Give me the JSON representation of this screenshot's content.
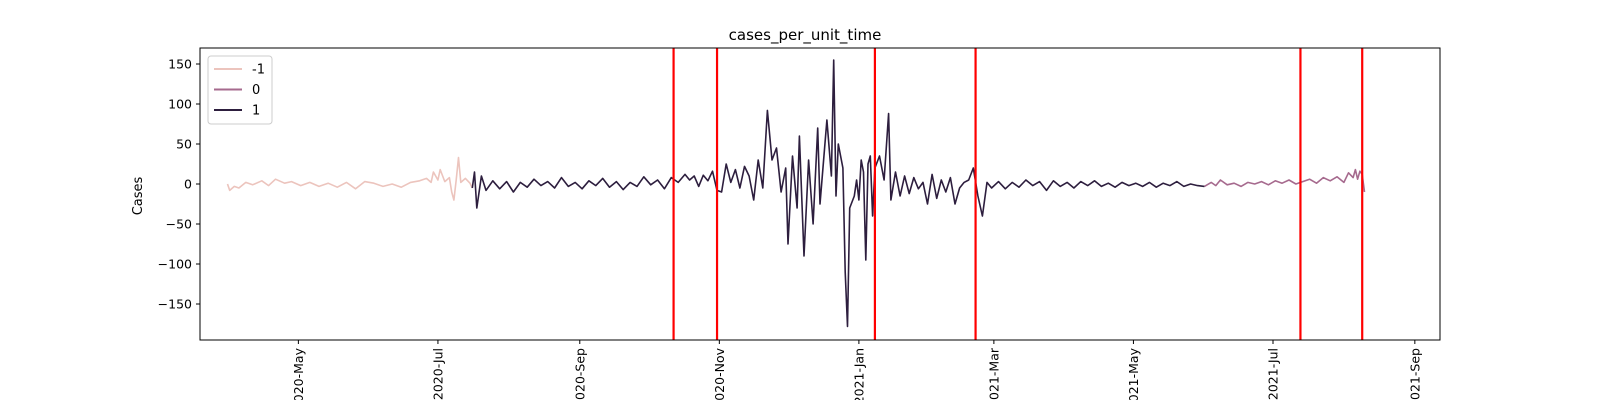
{
  "chart_data": {
    "type": "line",
    "title": "cases_per_unit_time",
    "xlabel": "",
    "ylabel": "Cases",
    "ylim": [
      -195,
      170
    ],
    "xlim": [
      "2020-03-19",
      "2021-09-12"
    ],
    "grid": false,
    "legend_position": "top-left",
    "y_ticks": [
      -150,
      -100,
      -50,
      0,
      50,
      100,
      150
    ],
    "y_tick_labels": [
      "−150",
      "−100",
      "−50",
      "0",
      "50",
      "100",
      "150"
    ],
    "x_ticks": [
      "2020-05-01",
      "2020-07-01",
      "2020-09-01",
      "2020-11-01",
      "2021-01-01",
      "2021-03-01",
      "2021-05-01",
      "2021-07-01",
      "2021-09-01"
    ],
    "x_tick_labels": [
      "2020-May",
      "2020-Jul",
      "2020-Sep",
      "2020-Nov",
      "2021-Jan",
      "2021-Mar",
      "2021-May",
      "2021-Jul",
      "2021-Sep"
    ],
    "vertical_lines": [
      "2020-10-12",
      "2020-10-31",
      "2021-01-08",
      "2021-02-21",
      "2021-07-13",
      "2021-08-09"
    ],
    "vertical_line_color": "#ff0000",
    "series": [
      {
        "name": "-1",
        "color": "#ecc4bd",
        "points": [
          [
            "2020-03-31",
            0
          ],
          [
            "2020-04-01",
            -8
          ],
          [
            "2020-04-03",
            -3
          ],
          [
            "2020-04-05",
            -5
          ],
          [
            "2020-04-08",
            2
          ],
          [
            "2020-04-11",
            -1
          ],
          [
            "2020-04-15",
            4
          ],
          [
            "2020-04-18",
            -2
          ],
          [
            "2020-04-21",
            6
          ],
          [
            "2020-04-25",
            1
          ],
          [
            "2020-04-28",
            3
          ],
          [
            "2020-05-02",
            -2
          ],
          [
            "2020-05-06",
            2
          ],
          [
            "2020-05-10",
            -3
          ],
          [
            "2020-05-14",
            1
          ],
          [
            "2020-05-18",
            -4
          ],
          [
            "2020-05-22",
            2
          ],
          [
            "2020-05-26",
            -6
          ],
          [
            "2020-05-30",
            3
          ],
          [
            "2020-06-03",
            1
          ],
          [
            "2020-06-07",
            -3
          ],
          [
            "2020-06-11",
            0
          ],
          [
            "2020-06-15",
            -4
          ],
          [
            "2020-06-19",
            2
          ],
          [
            "2020-06-23",
            4
          ],
          [
            "2020-06-26",
            7
          ],
          [
            "2020-06-28",
            2
          ],
          [
            "2020-06-29",
            15
          ],
          [
            "2020-07-01",
            5
          ],
          [
            "2020-07-02",
            18
          ],
          [
            "2020-07-04",
            3
          ],
          [
            "2020-07-06",
            8
          ],
          [
            "2020-07-07",
            -10
          ],
          [
            "2020-07-08",
            -20
          ],
          [
            "2020-07-09",
            5
          ],
          [
            "2020-07-10",
            33
          ],
          [
            "2020-07-11",
            2
          ],
          [
            "2020-07-13",
            7
          ],
          [
            "2020-07-15",
            1
          ],
          [
            "2020-07-16",
            -5
          ]
        ]
      },
      {
        "name": "0",
        "color": "#a66a8e",
        "points": [
          [
            "2021-06-01",
            -3
          ],
          [
            "2021-06-04",
            2
          ],
          [
            "2021-06-06",
            -2
          ],
          [
            "2021-06-08",
            5
          ],
          [
            "2021-06-11",
            -1
          ],
          [
            "2021-06-14",
            1
          ],
          [
            "2021-06-17",
            -3
          ],
          [
            "2021-06-20",
            2
          ],
          [
            "2021-06-23",
            0
          ],
          [
            "2021-06-26",
            3
          ],
          [
            "2021-06-29",
            -1
          ],
          [
            "2021-07-02",
            4
          ],
          [
            "2021-07-05",
            1
          ],
          [
            "2021-07-08",
            5
          ],
          [
            "2021-07-11",
            0
          ],
          [
            "2021-07-14",
            3
          ],
          [
            "2021-07-17",
            6
          ],
          [
            "2021-07-20",
            1
          ],
          [
            "2021-07-23",
            8
          ],
          [
            "2021-07-26",
            4
          ],
          [
            "2021-07-29",
            9
          ],
          [
            "2021-08-01",
            2
          ],
          [
            "2021-08-03",
            14
          ],
          [
            "2021-08-05",
            8
          ],
          [
            "2021-08-06",
            18
          ],
          [
            "2021-08-07",
            6
          ],
          [
            "2021-08-08",
            16
          ],
          [
            "2021-08-09",
            12
          ],
          [
            "2021-08-10",
            -10
          ]
        ]
      },
      {
        "name": "1",
        "color": "#2d1e3e",
        "points": [
          [
            "2020-07-16",
            -5
          ],
          [
            "2020-07-17",
            15
          ],
          [
            "2020-07-18",
            -30
          ],
          [
            "2020-07-20",
            10
          ],
          [
            "2020-07-22",
            -8
          ],
          [
            "2020-07-25",
            4
          ],
          [
            "2020-07-28",
            -6
          ],
          [
            "2020-07-31",
            3
          ],
          [
            "2020-08-03",
            -10
          ],
          [
            "2020-08-06",
            2
          ],
          [
            "2020-08-09",
            -4
          ],
          [
            "2020-08-12",
            6
          ],
          [
            "2020-08-15",
            -2
          ],
          [
            "2020-08-18",
            3
          ],
          [
            "2020-08-21",
            -5
          ],
          [
            "2020-08-24",
            8
          ],
          [
            "2020-08-27",
            -3
          ],
          [
            "2020-08-30",
            2
          ],
          [
            "2020-09-02",
            -6
          ],
          [
            "2020-09-05",
            4
          ],
          [
            "2020-09-08",
            -2
          ],
          [
            "2020-09-11",
            7
          ],
          [
            "2020-09-14",
            -4
          ],
          [
            "2020-09-17",
            3
          ],
          [
            "2020-09-20",
            -7
          ],
          [
            "2020-09-23",
            2
          ],
          [
            "2020-09-26",
            -3
          ],
          [
            "2020-09-29",
            9
          ],
          [
            "2020-10-02",
            -1
          ],
          [
            "2020-10-05",
            5
          ],
          [
            "2020-10-08",
            -6
          ],
          [
            "2020-10-11",
            8
          ],
          [
            "2020-10-14",
            2
          ],
          [
            "2020-10-17",
            12
          ],
          [
            "2020-10-19",
            5
          ],
          [
            "2020-10-21",
            10
          ],
          [
            "2020-10-23",
            -3
          ],
          [
            "2020-10-25",
            11
          ],
          [
            "2020-10-27",
            4
          ],
          [
            "2020-10-29",
            16
          ],
          [
            "2020-10-31",
            -8
          ],
          [
            "2020-11-02",
            -10
          ],
          [
            "2020-11-04",
            25
          ],
          [
            "2020-11-06",
            2
          ],
          [
            "2020-11-08",
            18
          ],
          [
            "2020-11-10",
            -5
          ],
          [
            "2020-11-12",
            22
          ],
          [
            "2020-11-14",
            10
          ],
          [
            "2020-11-16",
            -20
          ],
          [
            "2020-11-18",
            30
          ],
          [
            "2020-11-20",
            -5
          ],
          [
            "2020-11-22",
            92
          ],
          [
            "2020-11-24",
            30
          ],
          [
            "2020-11-26",
            45
          ],
          [
            "2020-11-28",
            -10
          ],
          [
            "2020-11-30",
            20
          ],
          [
            "2020-12-01",
            -75
          ],
          [
            "2020-12-03",
            35
          ],
          [
            "2020-12-05",
            -30
          ],
          [
            "2020-12-06",
            60
          ],
          [
            "2020-12-08",
            -90
          ],
          [
            "2020-12-10",
            30
          ],
          [
            "2020-12-12",
            -50
          ],
          [
            "2020-12-14",
            70
          ],
          [
            "2020-12-15",
            -25
          ],
          [
            "2020-12-17",
            45
          ],
          [
            "2020-12-18",
            80
          ],
          [
            "2020-12-20",
            10
          ],
          [
            "2020-12-21",
            155
          ],
          [
            "2020-12-22",
            -15
          ],
          [
            "2020-12-23",
            50
          ],
          [
            "2020-12-25",
            20
          ],
          [
            "2020-12-26",
            -110
          ],
          [
            "2020-12-27",
            -178
          ],
          [
            "2020-12-28",
            -30
          ],
          [
            "2020-12-30",
            -15
          ],
          [
            "2020-12-31",
            5
          ],
          [
            "2021-01-01",
            -20
          ],
          [
            "2021-01-02",
            30
          ],
          [
            "2021-01-03",
            15
          ],
          [
            "2021-01-04",
            -95
          ],
          [
            "2021-01-05",
            25
          ],
          [
            "2021-01-06",
            35
          ],
          [
            "2021-01-07",
            -40
          ],
          [
            "2021-01-08",
            20
          ],
          [
            "2021-01-10",
            35
          ],
          [
            "2021-01-12",
            5
          ],
          [
            "2021-01-14",
            88
          ],
          [
            "2021-01-15",
            -20
          ],
          [
            "2021-01-17",
            15
          ],
          [
            "2021-01-19",
            -15
          ],
          [
            "2021-01-21",
            10
          ],
          [
            "2021-01-23",
            -12
          ],
          [
            "2021-01-25",
            8
          ],
          [
            "2021-01-27",
            -6
          ],
          [
            "2021-01-29",
            2
          ],
          [
            "2021-01-31",
            -25
          ],
          [
            "2021-02-02",
            12
          ],
          [
            "2021-02-04",
            -18
          ],
          [
            "2021-02-06",
            5
          ],
          [
            "2021-02-08",
            -10
          ],
          [
            "2021-02-10",
            8
          ],
          [
            "2021-02-12",
            -25
          ],
          [
            "2021-02-14",
            -5
          ],
          [
            "2021-02-16",
            2
          ],
          [
            "2021-02-18",
            5
          ],
          [
            "2021-02-20",
            20
          ],
          [
            "2021-02-22",
            -15
          ],
          [
            "2021-02-24",
            -40
          ],
          [
            "2021-02-26",
            2
          ],
          [
            "2021-02-28",
            -5
          ],
          [
            "2021-03-03",
            3
          ],
          [
            "2021-03-06",
            -6
          ],
          [
            "2021-03-09",
            2
          ],
          [
            "2021-03-12",
            -4
          ],
          [
            "2021-03-15",
            5
          ],
          [
            "2021-03-18",
            -2
          ],
          [
            "2021-03-21",
            3
          ],
          [
            "2021-03-24",
            -8
          ],
          [
            "2021-03-27",
            4
          ],
          [
            "2021-03-30",
            -3
          ],
          [
            "2021-04-02",
            2
          ],
          [
            "2021-04-05",
            -5
          ],
          [
            "2021-04-08",
            3
          ],
          [
            "2021-04-11",
            -2
          ],
          [
            "2021-04-14",
            4
          ],
          [
            "2021-04-17",
            -3
          ],
          [
            "2021-04-20",
            1
          ],
          [
            "2021-04-23",
            -4
          ],
          [
            "2021-04-26",
            2
          ],
          [
            "2021-04-29",
            -2
          ],
          [
            "2021-05-02",
            1
          ],
          [
            "2021-05-05",
            -3
          ],
          [
            "2021-05-08",
            2
          ],
          [
            "2021-05-11",
            -4
          ],
          [
            "2021-05-14",
            1
          ],
          [
            "2021-05-17",
            -2
          ],
          [
            "2021-05-20",
            3
          ],
          [
            "2021-05-23",
            -3
          ],
          [
            "2021-05-26",
            0
          ],
          [
            "2021-05-29",
            -2
          ],
          [
            "2021-06-01",
            -3
          ]
        ]
      }
    ]
  }
}
